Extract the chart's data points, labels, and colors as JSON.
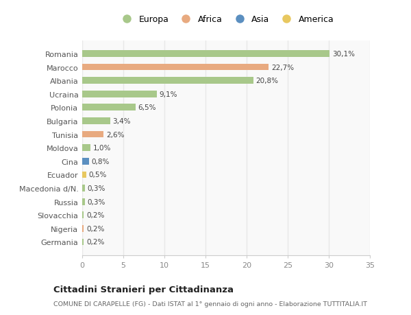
{
  "countries": [
    "Romania",
    "Marocco",
    "Albania",
    "Ucraina",
    "Polonia",
    "Bulgaria",
    "Tunisia",
    "Moldova",
    "Cina",
    "Ecuador",
    "Macedonia d/N.",
    "Russia",
    "Slovacchia",
    "Nigeria",
    "Germania"
  ],
  "values": [
    30.1,
    22.7,
    20.8,
    9.1,
    6.5,
    3.4,
    2.6,
    1.0,
    0.8,
    0.5,
    0.3,
    0.3,
    0.2,
    0.2,
    0.2
  ],
  "labels": [
    "30,1%",
    "22,7%",
    "20,8%",
    "9,1%",
    "6,5%",
    "3,4%",
    "2,6%",
    "1,0%",
    "0,8%",
    "0,5%",
    "0,3%",
    "0,3%",
    "0,2%",
    "0,2%",
    "0,2%"
  ],
  "continents": [
    "Europa",
    "Africa",
    "Europa",
    "Europa",
    "Europa",
    "Europa",
    "Africa",
    "Europa",
    "Asia",
    "America",
    "Europa",
    "Europa",
    "Europa",
    "Africa",
    "Europa"
  ],
  "continent_colors": {
    "Europa": "#a8c88a",
    "Africa": "#e8aa80",
    "Asia": "#5b8fc0",
    "America": "#e8c860"
  },
  "legend_order": [
    "Europa",
    "Africa",
    "Asia",
    "America"
  ],
  "bg_color": "#ffffff",
  "plot_bg_color": "#f9f9f9",
  "grid_color": "#e8e8e8",
  "title": "Cittadini Stranieri per Cittadinanza",
  "subtitle": "COMUNE DI CARAPELLE (FG) - Dati ISTAT al 1° gennaio di ogni anno - Elaborazione TUTTITALIA.IT",
  "xlim": [
    0,
    35
  ],
  "xticks": [
    0,
    5,
    10,
    15,
    20,
    25,
    30,
    35
  ]
}
